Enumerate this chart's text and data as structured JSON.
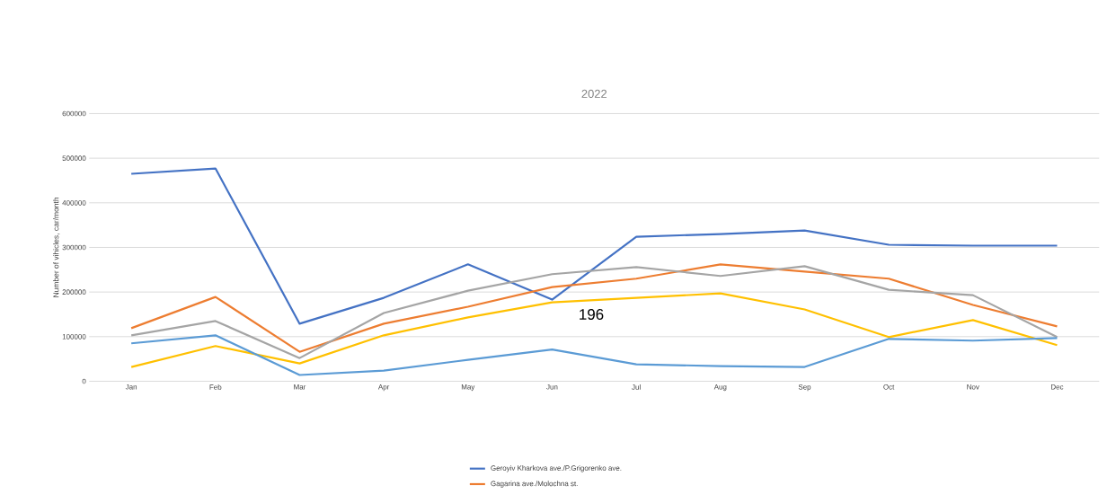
{
  "chart_data": {
    "type": "line",
    "title": "2022",
    "ylabel": "Number of vihicles, car/month",
    "categories": [
      "Jan",
      "Feb",
      "Mar",
      "Apr",
      "May",
      "Jun",
      "Jul",
      "Aug",
      "Sep",
      "Oct",
      "Nov",
      "Dec"
    ],
    "series": [
      {
        "name": "Geroyiv Kharkova ave./P.Grigorenko ave.",
        "color": "#4472c4",
        "values": [
          465000,
          477000,
          129000,
          187000,
          262000,
          183000,
          324000,
          330000,
          338000,
          306000,
          304000,
          304000
        ]
      },
      {
        "name": "Gagarina ave./Molochna st.",
        "color": "#ed7d31",
        "values": [
          119000,
          189000,
          66000,
          129000,
          167000,
          211000,
          230000,
          262000,
          246000,
          230000,
          171000,
          123000
        ]
      },
      {
        "color": "#a5a5a5",
        "values": [
          103000,
          135000,
          52000,
          153000,
          203000,
          240000,
          256000,
          236000,
          258000,
          205000,
          193000,
          99000
        ]
      },
      {
        "color": "#ffc000",
        "values": [
          32000,
          79000,
          40000,
          103000,
          143000,
          177000,
          187000,
          197000,
          161000,
          99000,
          137000,
          81000
        ]
      },
      {
        "color": "#5b9bd5",
        "values": [
          85000,
          103000,
          14000,
          24000,
          48000,
          71000,
          38000,
          34000,
          32000,
          95000,
          91000,
          97000
        ]
      }
    ],
    "ylim": [
      0,
      600000
    ],
    "yticks": [
      0,
      100000,
      200000,
      300000,
      400000,
      500000,
      600000
    ],
    "grid": "y",
    "legend": "bottom",
    "marker": "none",
    "line_style": "solid",
    "annotations": [
      "196"
    ]
  }
}
